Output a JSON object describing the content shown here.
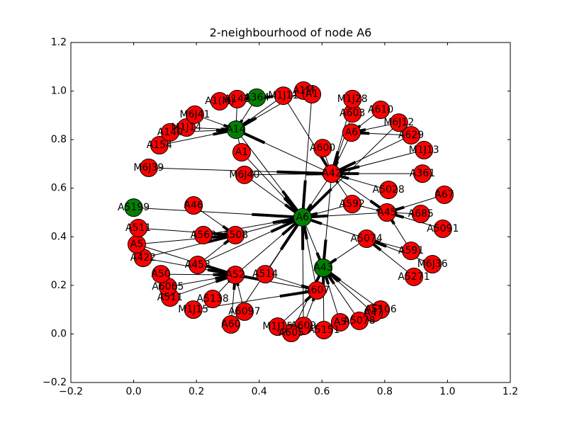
{
  "chart_data": {
    "type": "network",
    "title": "2-neighbourhood of node A6",
    "xlim": [
      -0.2,
      1.2
    ],
    "ylim": [
      -0.2,
      1.2
    ],
    "xticks": [
      {
        "value": -0.2,
        "label": "−0.2"
      },
      {
        "value": 0,
        "label": "0.0"
      },
      0.2,
      0.4,
      0.6,
      0.8,
      {
        "value": 1,
        "label": "1.0"
      },
      1.2
    ],
    "yticks": [
      {
        "value": -0.2,
        "label": "−0.2"
      },
      {
        "value": 0,
        "label": "0.0"
      },
      0.2,
      0.4,
      0.6,
      0.8,
      {
        "value": 1,
        "label": "1.0"
      },
      1.2
    ],
    "nodes": [
      {
        "label": "A6",
        "x": 0.538,
        "y": 0.48,
        "color": "#008000"
      },
      {
        "label": "A42",
        "x": 0.631,
        "y": 0.66,
        "color": "#ff0000"
      },
      {
        "label": "A14",
        "x": 0.326,
        "y": 0.841,
        "color": "#008000"
      },
      {
        "label": "A364",
        "x": 0.392,
        "y": 0.973,
        "color": "#008000"
      },
      {
        "label": "A5199",
        "x": 0.0,
        "y": 0.52,
        "color": "#008000"
      },
      {
        "label": "A43",
        "x": 0.604,
        "y": 0.272,
        "color": "#008000"
      },
      {
        "label": "A1",
        "x": 0.344,
        "y": 0.748,
        "color": "#ff0000"
      },
      {
        "label": "M6J40",
        "x": 0.353,
        "y": 0.655,
        "color": "#ff0000"
      },
      {
        "label": "A600",
        "x": 0.602,
        "y": 0.765,
        "color": "#ff0000"
      },
      {
        "label": "A6",
        "x": 0.694,
        "y": 0.829,
        "color": "#ff0000"
      },
      {
        "label": "A603",
        "x": 0.697,
        "y": 0.908,
        "color": "#ff0000"
      },
      {
        "label": "M1J28",
        "x": 0.697,
        "y": 0.967,
        "color": "#ff0000"
      },
      {
        "label": "A610",
        "x": 0.787,
        "y": 0.923,
        "color": "#ff0000"
      },
      {
        "label": "M6J12",
        "x": 0.845,
        "y": 0.87,
        "color": "#ff0000"
      },
      {
        "label": "A629",
        "x": 0.884,
        "y": 0.818,
        "color": "#ff0000"
      },
      {
        "label": "M1J13",
        "x": 0.925,
        "y": 0.757,
        "color": "#ff0000"
      },
      {
        "label": "A361",
        "x": 0.92,
        "y": 0.66,
        "color": "#ff0000"
      },
      {
        "label": "A67",
        "x": 0.99,
        "y": 0.573,
        "color": "#ff0000"
      },
      {
        "label": "A5028",
        "x": 0.812,
        "y": 0.593,
        "color": "#ff0000"
      },
      {
        "label": "A45",
        "x": 0.807,
        "y": 0.5,
        "color": "#ff0000"
      },
      {
        "label": "A685",
        "x": 0.915,
        "y": 0.494,
        "color": "#ff0000"
      },
      {
        "label": "A5091",
        "x": 0.985,
        "y": 0.433,
        "color": "#ff0000"
      },
      {
        "label": "A592",
        "x": 0.696,
        "y": 0.535,
        "color": "#ff0000"
      },
      {
        "label": "A5074",
        "x": 0.742,
        "y": 0.392,
        "color": "#ff0000"
      },
      {
        "label": "A591",
        "x": 0.884,
        "y": 0.342,
        "color": "#ff0000"
      },
      {
        "label": "M6J36",
        "x": 0.952,
        "y": 0.287,
        "color": "#ff0000"
      },
      {
        "label": "A5271",
        "x": 0.893,
        "y": 0.235,
        "color": "#ff0000"
      },
      {
        "label": "A607",
        "x": 0.584,
        "y": 0.179,
        "color": "#ff0000"
      },
      {
        "label": "A5106",
        "x": 0.787,
        "y": 0.1,
        "color": "#ff0000"
      },
      {
        "label": "A47",
        "x": 0.764,
        "y": 0.086,
        "color": "#ff0000"
      },
      {
        "label": "A5078",
        "x": 0.719,
        "y": 0.054,
        "color": "#ff0000"
      },
      {
        "label": "A5",
        "x": 0.658,
        "y": 0.048,
        "color": "#ff0000"
      },
      {
        "label": "A5151",
        "x": 0.606,
        "y": 0.016,
        "color": "#ff0000"
      },
      {
        "label": "A609",
        "x": 0.541,
        "y": 0.033,
        "color": "#ff0000"
      },
      {
        "label": "A605",
        "x": 0.502,
        "y": 0.004,
        "color": "#ff0000"
      },
      {
        "label": "M1J15",
        "x": 0.459,
        "y": 0.03,
        "color": "#ff0000"
      },
      {
        "label": "A60",
        "x": 0.31,
        "y": 0.039,
        "color": "#ff0000"
      },
      {
        "label": "A6097",
        "x": 0.353,
        "y": 0.092,
        "color": "#ff0000"
      },
      {
        "label": "A5138",
        "x": 0.252,
        "y": 0.144,
        "color": "#ff0000"
      },
      {
        "label": "M1J15",
        "x": 0.19,
        "y": 0.1,
        "color": "#ff0000"
      },
      {
        "label": "A511",
        "x": 0.116,
        "y": 0.15,
        "color": "#ff0000"
      },
      {
        "label": "A6065",
        "x": 0.109,
        "y": 0.194,
        "color": "#ff0000"
      },
      {
        "label": "A50",
        "x": 0.087,
        "y": 0.246,
        "color": "#ff0000"
      },
      {
        "label": "A52",
        "x": 0.324,
        "y": 0.243,
        "color": "#ff0000"
      },
      {
        "label": "A514",
        "x": 0.419,
        "y": 0.246,
        "color": "#ff0000"
      },
      {
        "label": "A453",
        "x": 0.204,
        "y": 0.284,
        "color": "#ff0000"
      },
      {
        "label": "A422",
        "x": 0.03,
        "y": 0.313,
        "color": "#ff0000"
      },
      {
        "label": "A5",
        "x": 0.01,
        "y": 0.369,
        "color": "#ff0000"
      },
      {
        "label": "A511",
        "x": 0.015,
        "y": 0.436,
        "color": "#ff0000"
      },
      {
        "label": "A563",
        "x": 0.222,
        "y": 0.407,
        "color": "#ff0000"
      },
      {
        "label": "A508",
        "x": 0.324,
        "y": 0.407,
        "color": "#ff0000"
      },
      {
        "label": "A46",
        "x": 0.191,
        "y": 0.529,
        "color": "#ff0000"
      },
      {
        "label": "M6J39",
        "x": 0.048,
        "y": 0.684,
        "color": "#ff0000"
      },
      {
        "label": "A154",
        "x": 0.082,
        "y": 0.777,
        "color": "#ff0000"
      },
      {
        "label": "A140",
        "x": 0.116,
        "y": 0.83,
        "color": "#ff0000"
      },
      {
        "label": "M1J14",
        "x": 0.168,
        "y": 0.85,
        "color": "#ff0000"
      },
      {
        "label": "M6J41",
        "x": 0.195,
        "y": 0.903,
        "color": "#ff0000"
      },
      {
        "label": "A1(M)",
        "x": 0.274,
        "y": 0.958,
        "color": "#ff0000"
      },
      {
        "label": "A141",
        "x": 0.33,
        "y": 0.967,
        "color": "#ff0000"
      },
      {
        "label": "M1J11",
        "x": 0.477,
        "y": 0.981,
        "color": "#ff0000"
      },
      {
        "label": "A1M",
        "x": 0.541,
        "y": 1.002,
        "color": "#ff0000"
      },
      {
        "label": "A1",
        "x": 0.568,
        "y": 0.987,
        "color": "#ff0000"
      }
    ],
    "edges": [
      [
        1,
        0
      ],
      [
        22,
        0
      ],
      [
        19,
        0
      ],
      [
        23,
        0
      ],
      [
        50,
        0
      ],
      [
        49,
        0
      ],
      [
        43,
        0
      ],
      [
        44,
        0
      ],
      [
        4,
        0
      ],
      [
        6,
        0
      ],
      [
        2,
        0
      ],
      [
        7,
        0
      ],
      [
        27,
        0
      ],
      [
        33,
        0
      ],
      [
        36,
        0
      ],
      [
        45,
        0
      ],
      [
        61,
        0
      ],
      [
        0,
        5
      ],
      [
        8,
        1
      ],
      [
        9,
        1
      ],
      [
        10,
        1
      ],
      [
        15,
        1
      ],
      [
        16,
        1
      ],
      [
        14,
        1
      ],
      [
        18,
        1
      ],
      [
        11,
        1
      ],
      [
        7,
        1
      ],
      [
        52,
        1
      ],
      [
        59,
        1
      ],
      [
        22,
        1
      ],
      [
        1,
        19
      ],
      [
        3,
        2
      ],
      [
        53,
        2
      ],
      [
        55,
        2
      ],
      [
        56,
        2
      ],
      [
        54,
        2
      ],
      [
        58,
        2
      ],
      [
        59,
        2
      ],
      [
        60,
        2
      ],
      [
        1,
        2
      ],
      [
        2,
        6
      ],
      [
        23,
        5
      ],
      [
        29,
        5
      ],
      [
        28,
        5
      ],
      [
        30,
        5
      ],
      [
        31,
        5
      ],
      [
        32,
        5
      ],
      [
        1,
        5
      ],
      [
        34,
        5
      ],
      [
        40,
        43
      ],
      [
        41,
        43
      ],
      [
        42,
        43
      ],
      [
        38,
        43
      ],
      [
        37,
        43
      ],
      [
        36,
        43
      ],
      [
        27,
        43
      ],
      [
        47,
        43
      ],
      [
        46,
        43
      ],
      [
        48,
        50
      ],
      [
        47,
        50
      ],
      [
        46,
        50
      ],
      [
        45,
        50
      ],
      [
        51,
        50
      ],
      [
        20,
        19
      ],
      [
        17,
        19
      ],
      [
        21,
        19
      ],
      [
        22,
        19
      ],
      [
        24,
        19
      ],
      [
        24,
        23
      ],
      [
        25,
        23
      ],
      [
        26,
        23
      ],
      [
        57,
        3
      ],
      [
        61,
        3
      ],
      [
        13,
        0
      ],
      [
        39,
        27
      ],
      [
        35,
        27
      ],
      [
        33,
        27
      ],
      [
        44,
        27
      ],
      [
        12,
        9
      ],
      [
        13,
        9
      ],
      [
        14,
        9
      ]
    ]
  }
}
